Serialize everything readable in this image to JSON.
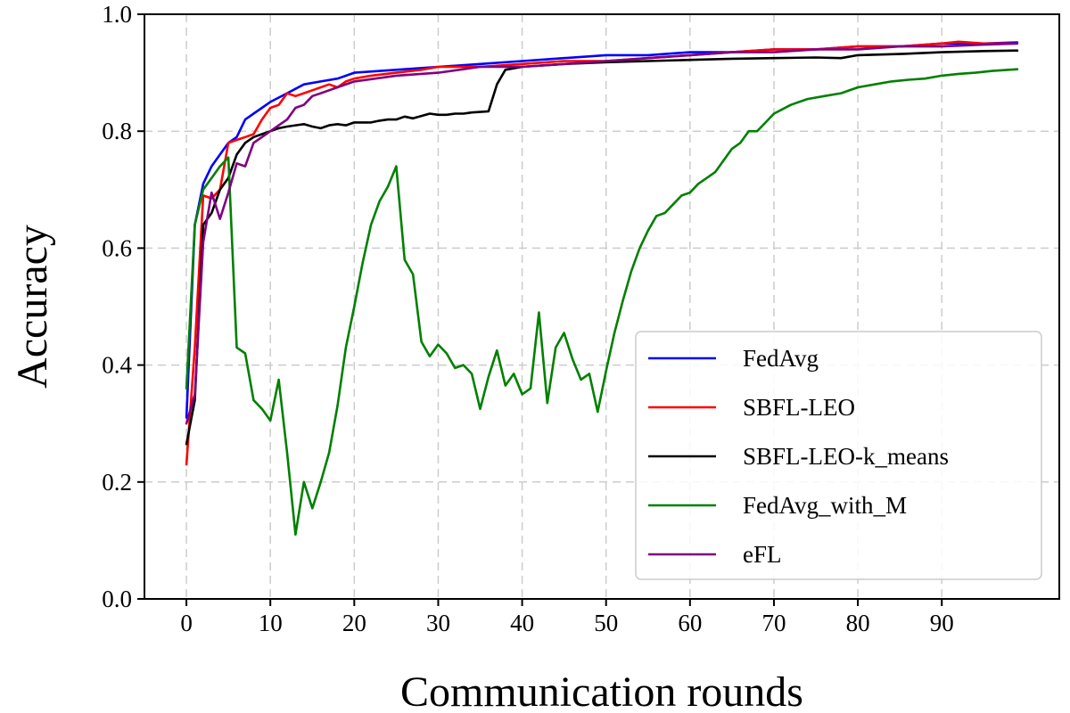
{
  "chart_data": {
    "type": "line",
    "title": "",
    "xlabel": "Communication rounds",
    "ylabel": "Accuracy",
    "xlim": [
      -5,
      104
    ],
    "ylim": [
      0,
      1
    ],
    "x_ticks": [
      0,
      10,
      20,
      30,
      40,
      50,
      60,
      70,
      80,
      90
    ],
    "x_tick_labels": [
      "0",
      "10",
      "20",
      "30",
      "40",
      "50",
      "60",
      "70",
      "80",
      "90"
    ],
    "y_ticks": [
      0,
      0.2,
      0.4,
      0.6,
      0.8,
      1.0
    ],
    "y_tick_labels": [
      "0.0",
      "0.2",
      "0.4",
      "0.6",
      "0.8",
      "1.0"
    ],
    "grid": true,
    "legend_position": "lower-right",
    "series": [
      {
        "name": "FedAvg",
        "color": "#0000ff",
        "x": [
          0,
          1,
          2,
          3,
          4,
          5,
          6,
          7,
          8,
          9,
          10,
          12,
          14,
          16,
          18,
          20,
          25,
          30,
          35,
          40,
          45,
          50,
          55,
          60,
          65,
          70,
          75,
          80,
          85,
          90,
          95,
          99
        ],
        "y": [
          0.31,
          0.64,
          0.71,
          0.74,
          0.76,
          0.78,
          0.79,
          0.82,
          0.83,
          0.84,
          0.85,
          0.865,
          0.88,
          0.885,
          0.89,
          0.9,
          0.905,
          0.91,
          0.915,
          0.92,
          0.925,
          0.93,
          0.93,
          0.935,
          0.935,
          0.94,
          0.94,
          0.945,
          0.945,
          0.95,
          0.95,
          0.952
        ]
      },
      {
        "name": "SBFL-LEO",
        "color": "#ff0000",
        "x": [
          0,
          1,
          2,
          3,
          4,
          5,
          6,
          7,
          8,
          9,
          10,
          11,
          12,
          13,
          14,
          15,
          16,
          17,
          18,
          19,
          20,
          22,
          25,
          28,
          30,
          35,
          40,
          45,
          50,
          55,
          60,
          65,
          70,
          75,
          80,
          85,
          90,
          92,
          95,
          99
        ],
        "y": [
          0.23,
          0.43,
          0.69,
          0.685,
          0.7,
          0.78,
          0.785,
          0.79,
          0.795,
          0.82,
          0.84,
          0.845,
          0.865,
          0.86,
          0.865,
          0.87,
          0.875,
          0.88,
          0.875,
          0.885,
          0.89,
          0.895,
          0.9,
          0.905,
          0.91,
          0.91,
          0.915,
          0.92,
          0.92,
          0.925,
          0.93,
          0.935,
          0.94,
          0.94,
          0.945,
          0.945,
          0.95,
          0.953,
          0.95,
          0.95
        ]
      },
      {
        "name": "SBFL-LEO-k_means",
        "color": "#000000",
        "x": [
          0,
          1,
          2,
          3,
          4,
          5,
          6,
          7,
          8,
          9,
          10,
          11,
          12,
          13,
          14,
          15,
          16,
          17,
          18,
          19,
          20,
          21,
          22,
          23,
          24,
          25,
          26,
          27,
          28,
          29,
          30,
          31,
          32,
          33,
          34,
          35,
          36,
          37,
          38,
          40,
          45,
          50,
          55,
          60,
          65,
          70,
          75,
          78,
          80,
          85,
          90,
          95,
          99
        ],
        "y": [
          0.265,
          0.34,
          0.64,
          0.66,
          0.7,
          0.72,
          0.76,
          0.78,
          0.79,
          0.795,
          0.8,
          0.805,
          0.808,
          0.81,
          0.812,
          0.808,
          0.805,
          0.81,
          0.812,
          0.81,
          0.815,
          0.815,
          0.815,
          0.818,
          0.82,
          0.82,
          0.825,
          0.822,
          0.826,
          0.83,
          0.828,
          0.828,
          0.83,
          0.83,
          0.832,
          0.833,
          0.834,
          0.88,
          0.905,
          0.91,
          0.915,
          0.918,
          0.92,
          0.922,
          0.924,
          0.925,
          0.926,
          0.925,
          0.93,
          0.932,
          0.935,
          0.937,
          0.938
        ]
      },
      {
        "name": "FedAvg_with_M",
        "color": "#008000",
        "x": [
          0,
          1,
          2,
          3,
          4,
          5,
          6,
          7,
          8,
          9,
          10,
          11,
          12,
          13,
          14,
          15,
          16,
          17,
          18,
          19,
          20,
          21,
          22,
          23,
          24,
          25,
          26,
          27,
          28,
          29,
          30,
          31,
          32,
          33,
          34,
          35,
          36,
          37,
          38,
          39,
          40,
          41,
          42,
          43,
          44,
          45,
          46,
          47,
          48,
          49,
          50,
          51,
          52,
          53,
          54,
          55,
          56,
          57,
          58,
          59,
          60,
          61,
          62,
          63,
          64,
          65,
          66,
          67,
          68,
          69,
          70,
          72,
          74,
          76,
          78,
          80,
          82,
          84,
          86,
          88,
          90,
          92,
          94,
          96,
          98,
          99
        ],
        "y": [
          0.36,
          0.64,
          0.7,
          0.72,
          0.74,
          0.755,
          0.43,
          0.42,
          0.34,
          0.325,
          0.305,
          0.375,
          0.25,
          0.11,
          0.2,
          0.155,
          0.2,
          0.25,
          0.33,
          0.43,
          0.5,
          0.575,
          0.64,
          0.68,
          0.705,
          0.74,
          0.58,
          0.555,
          0.44,
          0.415,
          0.435,
          0.42,
          0.395,
          0.4,
          0.385,
          0.325,
          0.38,
          0.425,
          0.365,
          0.385,
          0.35,
          0.36,
          0.49,
          0.335,
          0.43,
          0.455,
          0.41,
          0.375,
          0.385,
          0.32,
          0.39,
          0.455,
          0.51,
          0.56,
          0.6,
          0.63,
          0.655,
          0.66,
          0.675,
          0.69,
          0.695,
          0.71,
          0.72,
          0.73,
          0.75,
          0.77,
          0.78,
          0.8,
          0.8,
          0.815,
          0.83,
          0.845,
          0.855,
          0.86,
          0.865,
          0.875,
          0.88,
          0.885,
          0.888,
          0.89,
          0.895,
          0.898,
          0.9,
          0.903,
          0.905,
          0.906
        ]
      },
      {
        "name": "eFL",
        "color": "#800080",
        "x": [
          0,
          1,
          2,
          3,
          4,
          5,
          6,
          7,
          8,
          9,
          10,
          11,
          12,
          13,
          14,
          15,
          16,
          17,
          18,
          20,
          25,
          30,
          35,
          40,
          45,
          50,
          55,
          60,
          65,
          70,
          75,
          80,
          85,
          90,
          95,
          99
        ],
        "y": [
          0.3,
          0.35,
          0.61,
          0.695,
          0.65,
          0.695,
          0.745,
          0.74,
          0.78,
          0.79,
          0.8,
          0.81,
          0.82,
          0.84,
          0.845,
          0.86,
          0.865,
          0.87,
          0.875,
          0.885,
          0.895,
          0.9,
          0.91,
          0.91,
          0.915,
          0.92,
          0.925,
          0.93,
          0.935,
          0.935,
          0.94,
          0.94,
          0.945,
          0.945,
          0.948,
          0.95
        ]
      }
    ]
  }
}
